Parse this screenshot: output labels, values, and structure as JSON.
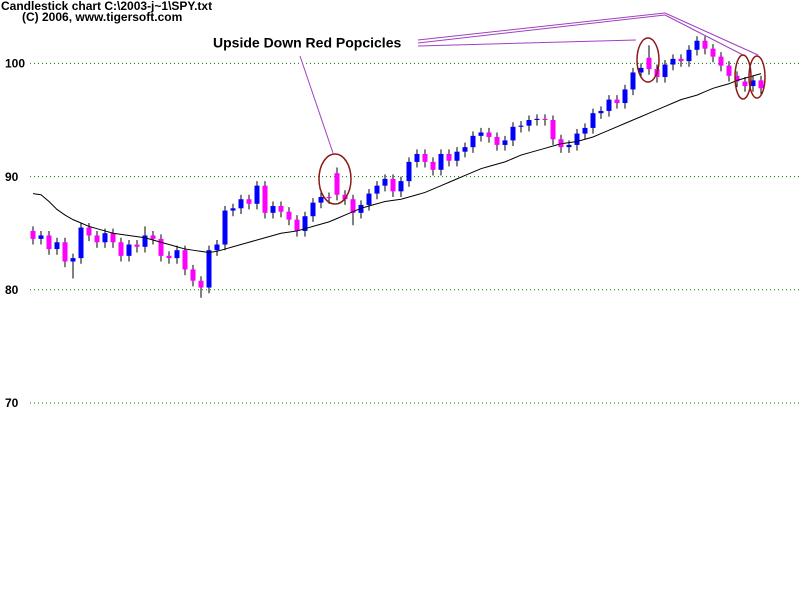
{
  "chart_data": {
    "type": "candlestick",
    "title": "Candlestick chart C:\\2003-j~1\\SPY.txt",
    "subtitle": "(C) 2006, www.tigersoft.com",
    "annotation": "Upside Down Red Popcicles",
    "up_color": "#0000ff",
    "down_color": "#ff00ff",
    "ma_color": "#000000",
    "grid": true,
    "grid_color": "#008000",
    "ylim": [
      52.6,
      105.6
    ],
    "yticks": [
      70,
      80,
      90,
      100
    ],
    "open": [
      85.2,
      84.5,
      84.8,
      83.6,
      84.2,
      82.5,
      82.8,
      85.5,
      84.8,
      84.2,
      85,
      84.2,
      83,
      84,
      83.8,
      84.8,
      84.5,
      83,
      82.8,
      83.5,
      81.8,
      80.8,
      80.2,
      83.5,
      84,
      87,
      87.2,
      88,
      87.6,
      89.2,
      86.8,
      87.4,
      86.9,
      86.2,
      85.2,
      86.5,
      87.7,
      88.2,
      90.3,
      88.4,
      88.0,
      86.8,
      87.5,
      88.5,
      89.2,
      89.8,
      88.7,
      89.6,
      91.3,
      92,
      91.3,
      90.6,
      92,
      91.4,
      92.2,
      92.6,
      93.6,
      93.9,
      93.5,
      92.8,
      93.2,
      94.4,
      94.5,
      95,
      95.1,
      95.0,
      93.3,
      92.6,
      92.8,
      93.8,
      94.3,
      95.6,
      95.8,
      96.8,
      96.5,
      97.7,
      99.2,
      100.5,
      99.5,
      98.8,
      99.9,
      100.4,
      100.2,
      101.2,
      102,
      101.3,
      100.6,
      99.8,
      98.9,
      98.4,
      98,
      98.5
    ],
    "high": [
      85.6,
      85.2,
      85.2,
      84.6,
      84.6,
      83.2,
      85.9,
      85.9,
      85.2,
      85.4,
      85.4,
      84.6,
      84.4,
      84.4,
      85.6,
      85.2,
      84.9,
      83.4,
      83.9,
      83.9,
      82.2,
      81.2,
      83.9,
      84.4,
      87.4,
      87.6,
      88.4,
      88.4,
      89.6,
      89.6,
      87.8,
      87.8,
      87.3,
      86.6,
      86.9,
      88.1,
      88.6,
      88.6,
      90.8,
      88.8,
      88.4,
      87.9,
      88.9,
      89.6,
      90.2,
      90.2,
      90.0,
      91.7,
      92.4,
      92.4,
      91.7,
      92.4,
      92.4,
      92.6,
      93.0,
      94.0,
      94.3,
      94.3,
      93.9,
      93.6,
      94.8,
      94.9,
      95.4,
      95.5,
      95.5,
      95.4,
      93.7,
      93.2,
      94.2,
      94.7,
      96.0,
      96.2,
      97.2,
      97.2,
      98.1,
      99.6,
      100.0,
      101.6,
      99.9,
      100.3,
      100.8,
      100.8,
      101.6,
      102.4,
      102.4,
      101.7,
      101.0,
      100.2,
      99.3,
      98.8,
      98.9,
      98.9
    ],
    "low": [
      84.0,
      84.0,
      83.1,
      83.1,
      82.0,
      81.0,
      82.3,
      84.3,
      83.7,
      83.7,
      83.7,
      82.5,
      82.5,
      83.3,
      83.3,
      84.0,
      82.5,
      82.3,
      82.3,
      81.3,
      80.3,
      79.3,
      79.7,
      83.0,
      83.5,
      86.5,
      86.7,
      87.1,
      87.1,
      86.3,
      86.3,
      86.4,
      85.7,
      84.7,
      84.7,
      86.0,
      87.2,
      87.6,
      87.9,
      87.5,
      85.7,
      86.3,
      87.0,
      88.0,
      88.7,
      88.2,
      88.2,
      89.1,
      90.8,
      90.8,
      90.1,
      90.1,
      90.9,
      90.9,
      91.7,
      92.1,
      93.1,
      93.0,
      92.3,
      92.3,
      92.7,
      93.9,
      94.0,
      94.5,
      94.5,
      92.8,
      92.1,
      92.1,
      92.3,
      93.3,
      93.8,
      95.1,
      95.3,
      96.0,
      96.0,
      97.2,
      98.7,
      99.0,
      98.3,
      98.3,
      99.4,
      99.7,
      99.7,
      100.7,
      100.8,
      100.1,
      99.3,
      98.4,
      97.9,
      97.5,
      97.5,
      97.3
    ],
    "close": [
      84.5,
      84.8,
      83.6,
      84.2,
      82.5,
      82.8,
      85.5,
      84.8,
      84.2,
      85,
      84.2,
      83,
      84,
      83.8,
      84.8,
      84.5,
      83,
      82.8,
      83.5,
      81.8,
      80.8,
      80.2,
      83.5,
      84,
      87,
      87.2,
      88,
      87.6,
      89.2,
      86.8,
      87.4,
      86.9,
      86.2,
      85.2,
      86.5,
      87.7,
      88.2,
      88.1,
      88.4,
      88.0,
      86.8,
      87.5,
      88.5,
      89.2,
      89.8,
      88.7,
      89.6,
      91.3,
      92,
      91.3,
      90.6,
      92,
      91.4,
      92.2,
      92.6,
      93.6,
      93.9,
      93.5,
      92.8,
      93.2,
      94.4,
      94.5,
      95,
      95.1,
      95.0,
      93.3,
      92.6,
      92.8,
      93.8,
      94.3,
      95.6,
      95.8,
      96.8,
      96.5,
      97.7,
      99.2,
      99.6,
      99.5,
      98.8,
      99.9,
      100.4,
      100.2,
      101.2,
      102,
      101.3,
      100.6,
      99.8,
      98.9,
      98.4,
      98,
      98.5,
      97.8
    ],
    "ma": [
      88.5,
      88.4,
      87.8,
      87.1,
      86.6,
      86.2,
      85.9,
      85.6,
      85.4,
      85.2,
      85.0,
      84.9,
      84.8,
      84.7,
      84.6,
      84.4,
      84.2,
      84.0,
      83.8,
      83.6,
      83.5,
      83.4,
      83.3,
      83.4,
      83.6,
      83.8,
      84.0,
      84.2,
      84.4,
      84.6,
      84.8,
      85.0,
      85.1,
      85.2,
      85.4,
      85.6,
      85.8,
      86.0,
      86.3,
      86.6,
      86.9,
      87.2,
      87.4,
      87.6,
      87.8,
      87.9,
      88.0,
      88.2,
      88.4,
      88.6,
      88.9,
      89.2,
      89.5,
      89.8,
      90.1,
      90.4,
      90.7,
      90.9,
      91.1,
      91.3,
      91.6,
      91.9,
      92.1,
      92.3,
      92.5,
      92.7,
      92.9,
      93.0,
      93.1,
      93.3,
      93.5,
      93.8,
      94.1,
      94.4,
      94.7,
      95.0,
      95.3,
      95.6,
      95.9,
      96.2,
      96.5,
      96.8,
      97.0,
      97.2,
      97.5,
      97.8,
      98.0,
      98.2,
      98.5,
      98.7,
      98.9,
      99.1
    ]
  }
}
